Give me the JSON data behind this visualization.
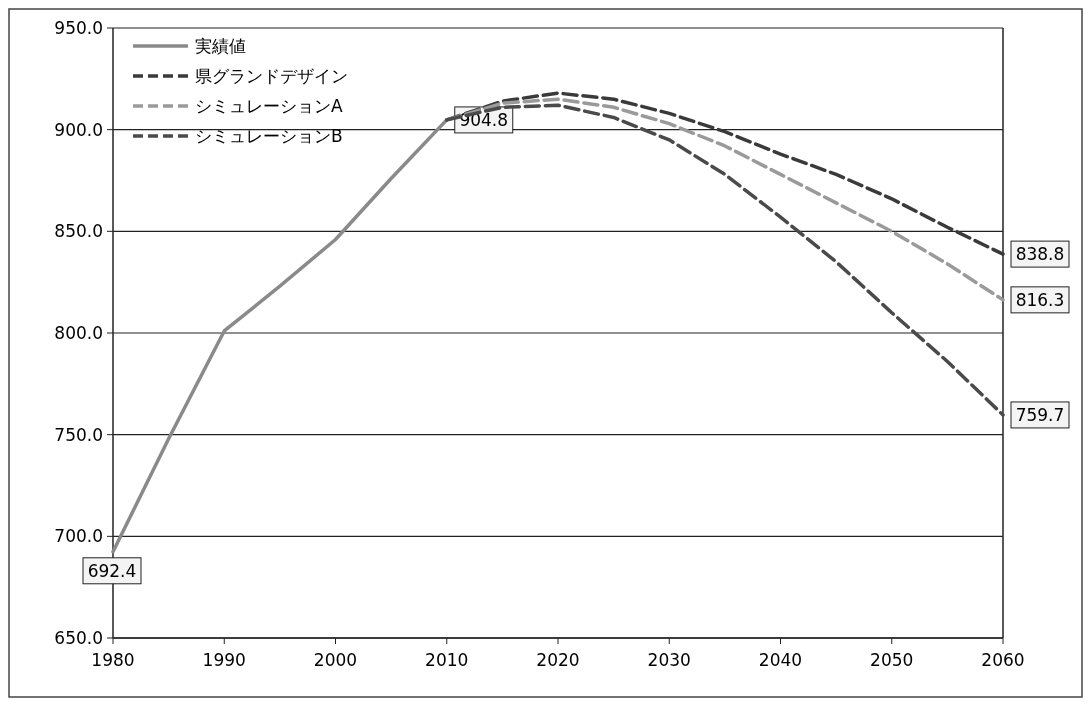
{
  "chart_data": {
    "type": "line",
    "xlim": [
      1980,
      2060
    ],
    "xticks": [
      1980,
      1990,
      2000,
      2010,
      2020,
      2030,
      2040,
      2050,
      2060
    ],
    "ylim": [
      650,
      950
    ],
    "yticks": [
      {
        "value": 650,
        "label": "650.0"
      },
      {
        "value": 700,
        "label": "700.0"
      },
      {
        "value": 750,
        "label": "750.0"
      },
      {
        "value": 800,
        "label": "800.0"
      },
      {
        "value": 850,
        "label": "850.0"
      },
      {
        "value": 900,
        "label": "900.0"
      },
      {
        "value": 950,
        "label": "950.0"
      }
    ],
    "grid": "y",
    "legend": "top left",
    "series": [
      {
        "name": "実績値",
        "color": "#8a8a8a",
        "line_style": "solid",
        "x": [
          1980,
          1985,
          1990,
          1995,
          2000,
          2005,
          2010
        ],
        "values": [
          692.4,
          748,
          801,
          823,
          846,
          876,
          904.8
        ],
        "value_labels": [
          "692.4",
          null,
          null,
          null,
          null,
          null,
          "904.8"
        ]
      },
      {
        "name": "県グランドデザイン",
        "color": "#3a3a3a",
        "line_style": "dashed",
        "x": [
          2010,
          2015,
          2020,
          2025,
          2030,
          2035,
          2040,
          2045,
          2050,
          2055,
          2060
        ],
        "values": [
          904.8,
          914,
          918,
          915,
          908,
          899,
          888,
          878,
          866,
          852,
          838.8
        ],
        "value_labels": [
          null,
          null,
          null,
          null,
          null,
          null,
          null,
          null,
          null,
          null,
          "838.8"
        ]
      },
      {
        "name": "シミュレーションA",
        "color": "#9a9a9a",
        "line_style": "dashed",
        "x": [
          2010,
          2015,
          2020,
          2025,
          2030,
          2035,
          2040,
          2045,
          2050,
          2055,
          2060
        ],
        "values": [
          904.8,
          913,
          915,
          911,
          903,
          892,
          878,
          864,
          850,
          834,
          816.3
        ],
        "value_labels": [
          null,
          null,
          null,
          null,
          null,
          null,
          null,
          null,
          null,
          null,
          "816.3"
        ]
      },
      {
        "name": "シミュレーションB",
        "color": "#4a4a4a",
        "line_style": "dashed",
        "x": [
          2010,
          2015,
          2020,
          2025,
          2030,
          2035,
          2040,
          2045,
          2050,
          2055,
          2060
        ],
        "values": [
          904.8,
          911,
          912,
          906,
          895,
          878,
          857,
          835,
          810,
          786,
          759.7
        ],
        "value_labels": [
          null,
          null,
          null,
          null,
          null,
          null,
          null,
          null,
          null,
          null,
          "759.7"
        ]
      }
    ]
  }
}
